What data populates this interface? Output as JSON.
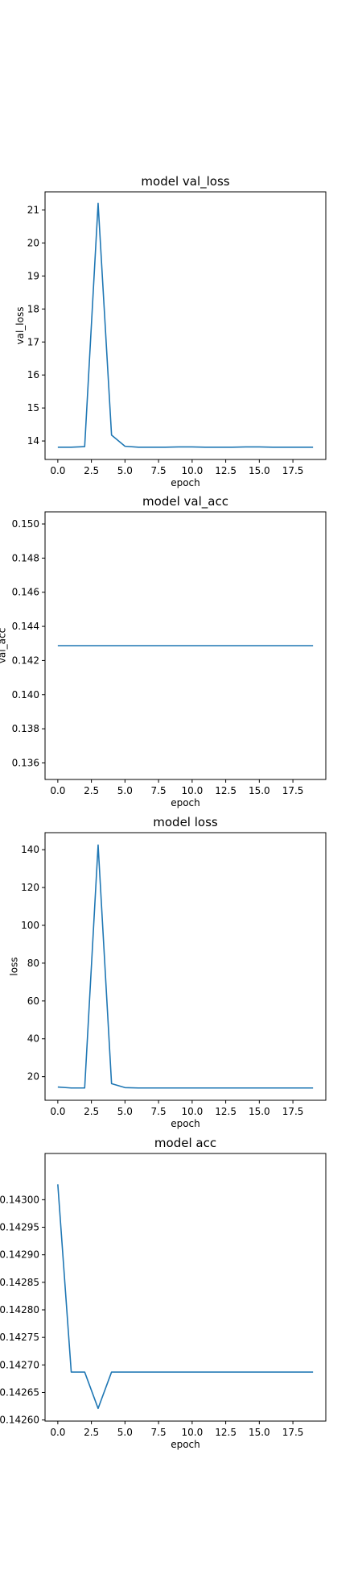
{
  "chart_data": [
    {
      "type": "line",
      "title": "model val_loss",
      "xlabel": "epoch",
      "ylabel": "val_loss",
      "xlim": [
        -0.95,
        19.95
      ],
      "ylim": [
        13.44,
        21.55
      ],
      "xticks": [
        0.0,
        2.5,
        5.0,
        7.5,
        10.0,
        12.5,
        15.0,
        17.5
      ],
      "xtick_labels": [
        "0.0",
        "2.5",
        "5.0",
        "7.5",
        "10.0",
        "12.5",
        "15.0",
        "17.5"
      ],
      "yticks": [
        14,
        15,
        16,
        17,
        18,
        19,
        20,
        21
      ],
      "ytick_labels": [
        "14",
        "15",
        "16",
        "17",
        "18",
        "19",
        "20",
        "21"
      ],
      "color": "#1f77b4",
      "grid": false,
      "x": [
        0,
        1,
        2,
        3,
        4,
        5,
        6,
        7,
        8,
        9,
        10,
        11,
        12,
        13,
        14,
        15,
        16,
        17,
        18,
        19
      ],
      "y": [
        13.81,
        13.81,
        13.83,
        21.2,
        14.18,
        13.84,
        13.81,
        13.81,
        13.81,
        13.82,
        13.82,
        13.81,
        13.81,
        13.81,
        13.82,
        13.82,
        13.81,
        13.81,
        13.81,
        13.81
      ]
    },
    {
      "type": "line",
      "title": "model val_acc",
      "xlabel": "epoch",
      "ylabel": "val_acc",
      "xlim": [
        -0.95,
        19.95
      ],
      "ylim": [
        0.13503,
        0.15071
      ],
      "xticks": [
        0.0,
        2.5,
        5.0,
        7.5,
        10.0,
        12.5,
        15.0,
        17.5
      ],
      "xtick_labels": [
        "0.0",
        "2.5",
        "5.0",
        "7.5",
        "10.0",
        "12.5",
        "15.0",
        "17.5"
      ],
      "yticks": [
        0.136,
        0.138,
        0.14,
        0.142,
        0.144,
        0.146,
        0.148,
        0.15
      ],
      "ytick_labels": [
        "0.136",
        "0.138",
        "0.140",
        "0.142",
        "0.144",
        "0.146",
        "0.148",
        "0.150"
      ],
      "color": "#1f77b4",
      "grid": false,
      "x": [
        0,
        1,
        2,
        3,
        4,
        5,
        6,
        7,
        8,
        9,
        10,
        11,
        12,
        13,
        14,
        15,
        16,
        17,
        18,
        19
      ],
      "y": [
        0.14287,
        0.14287,
        0.14287,
        0.14287,
        0.14287,
        0.14287,
        0.14287,
        0.14287,
        0.14287,
        0.14287,
        0.14287,
        0.14287,
        0.14287,
        0.14287,
        0.14287,
        0.14287,
        0.14287,
        0.14287,
        0.14287,
        0.14287
      ]
    },
    {
      "type": "line",
      "title": "model loss",
      "xlabel": "epoch",
      "ylabel": "loss",
      "xlim": [
        -0.95,
        19.95
      ],
      "ylim": [
        7.5,
        149.0
      ],
      "xticks": [
        0.0,
        2.5,
        5.0,
        7.5,
        10.0,
        12.5,
        15.0,
        17.5
      ],
      "xtick_labels": [
        "0.0",
        "2.5",
        "5.0",
        "7.5",
        "10.0",
        "12.5",
        "15.0",
        "17.5"
      ],
      "yticks": [
        20,
        40,
        60,
        80,
        100,
        120,
        140
      ],
      "ytick_labels": [
        "20",
        "40",
        "60",
        "80",
        "100",
        "120",
        "140"
      ],
      "color": "#1f77b4",
      "grid": false,
      "x": [
        0,
        1,
        2,
        3,
        4,
        5,
        6,
        7,
        8,
        9,
        10,
        11,
        12,
        13,
        14,
        15,
        16,
        17,
        18,
        19
      ],
      "y": [
        14.5,
        14.0,
        14.0,
        142.5,
        16.3,
        14.2,
        14.0,
        14.0,
        14.0,
        14.0,
        14.0,
        14.0,
        14.0,
        14.0,
        14.0,
        14.0,
        14.0,
        14.0,
        14.0,
        14.0
      ]
    },
    {
      "type": "line",
      "title": "model acc",
      "xlabel": "epoch",
      "ylabel": "",
      "xlim": [
        -0.95,
        19.95
      ],
      "ylim": [
        0.142598,
        0.143084
      ],
      "xticks": [
        0.0,
        2.5,
        5.0,
        7.5,
        10.0,
        12.5,
        15.0,
        17.5
      ],
      "xtick_labels": [
        "0.0",
        "2.5",
        "5.0",
        "7.5",
        "10.0",
        "12.5",
        "15.0",
        "17.5"
      ],
      "yticks": [
        0.1426,
        0.14265,
        0.1427,
        0.14275,
        0.1428,
        0.14285,
        0.1429,
        0.14295,
        0.143
      ],
      "ytick_labels": [
        "0.14260",
        "0.14265",
        "0.14270",
        "0.14275",
        "0.14280",
        "0.14285",
        "0.14290",
        "0.14295",
        "0.14300"
      ],
      "color": "#1f77b4",
      "grid": false,
      "x": [
        0,
        1,
        2,
        3,
        4,
        5,
        6,
        7,
        8,
        9,
        10,
        11,
        12,
        13,
        14,
        15,
        16,
        17,
        18,
        19
      ],
      "y": [
        0.143028,
        0.142687,
        0.142687,
        0.142621,
        0.142687,
        0.142687,
        0.142687,
        0.142687,
        0.142687,
        0.142687,
        0.142687,
        0.142687,
        0.142687,
        0.142687,
        0.142687,
        0.142687,
        0.142687,
        0.142687,
        0.142687,
        0.142687
      ]
    }
  ]
}
